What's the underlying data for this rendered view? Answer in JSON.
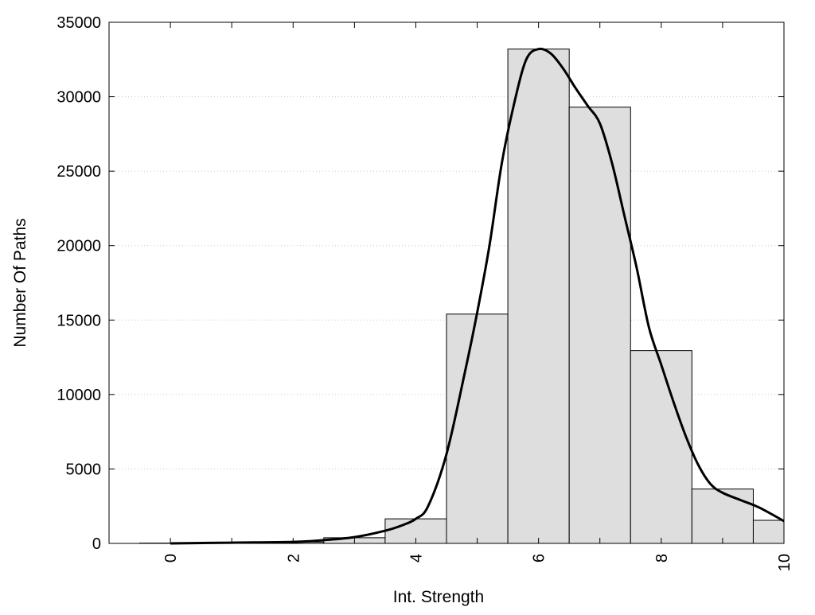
{
  "chart_data": {
    "type": "bar",
    "xlabel": "Int. Strength",
    "ylabel": "Number Of Paths",
    "xlim": [
      -1,
      10
    ],
    "ylim": [
      0,
      35000
    ],
    "x_ticks": [
      0,
      2,
      4,
      6,
      8,
      10
    ],
    "y_ticks": [
      0,
      5000,
      10000,
      15000,
      20000,
      25000,
      30000,
      35000
    ],
    "grid": "horizontal-dotted",
    "bar_width": 1,
    "bars": [
      {
        "x": 0,
        "value": 20
      },
      {
        "x": 1,
        "value": 40
      },
      {
        "x": 2,
        "value": 90
      },
      {
        "x": 3,
        "value": 380
      },
      {
        "x": 4,
        "value": 1650
      },
      {
        "x": 5,
        "value": 15400
      },
      {
        "x": 6,
        "value": 33200
      },
      {
        "x": 7,
        "value": 29300
      },
      {
        "x": 8,
        "value": 12950
      },
      {
        "x": 9,
        "value": 3650
      },
      {
        "x": 10,
        "value": 1550
      }
    ],
    "series": [
      {
        "type": "line",
        "x": [
          0,
          1,
          2,
          2.5,
          3,
          3.5,
          3.8,
          4,
          4.2,
          4.5,
          4.8,
          5,
          5.2,
          5.4,
          5.6,
          5.8,
          6,
          6.2,
          6.4,
          6.6,
          6.8,
          7,
          7.2,
          7.4,
          7.6,
          7.8,
          8,
          8.2,
          8.4,
          8.6,
          8.8,
          9,
          9.3,
          9.6,
          10
        ],
        "values": [
          0,
          50,
          100,
          220,
          420,
          850,
          1250,
          1650,
          2500,
          6000,
          11500,
          15500,
          20000,
          25500,
          29500,
          32500,
          33200,
          32900,
          31900,
          30600,
          29400,
          28200,
          25500,
          22000,
          18500,
          14500,
          12000,
          9500,
          7200,
          5300,
          4000,
          3400,
          2900,
          2400,
          1500
        ]
      }
    ],
    "colors": {
      "bar_fill": "#dedede",
      "bar_stroke": "#000000",
      "line": "#000000",
      "grid": "#c8c8c8"
    }
  }
}
